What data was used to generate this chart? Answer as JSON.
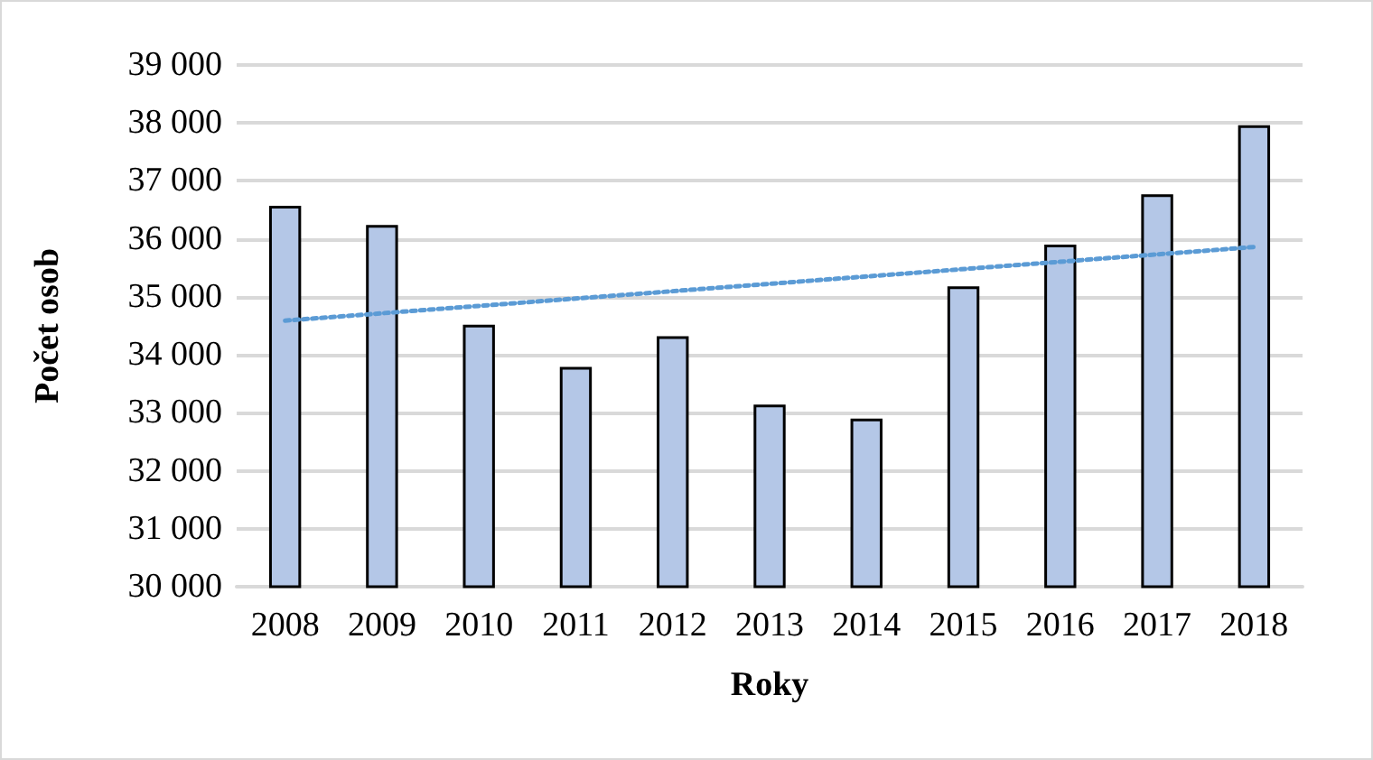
{
  "chart_data": {
    "type": "bar",
    "xlabel": "Roky",
    "ylabel": "Počet osob",
    "categories": [
      "2008",
      "2009",
      "2010",
      "2011",
      "2012",
      "2013",
      "2014",
      "2015",
      "2016",
      "2017",
      "2018"
    ],
    "series": [
      {
        "color": "#b4c7e7",
        "values": [
          36570,
          36240,
          34520,
          33790,
          34320,
          33140,
          32900,
          35180,
          35900,
          36770,
          37960
        ]
      },
      {
        "type": "line",
        "color": "#5b9bd5",
        "line_style": "dotted",
        "marker": "none",
        "values": [
          34590,
          null,
          null,
          null,
          null,
          null,
          null,
          null,
          null,
          null,
          35860
        ]
      }
    ],
    "ylim": [
      30000,
      39000
    ],
    "yticks": [
      {
        "value": 30000,
        "label": "30 000"
      },
      {
        "value": 31000,
        "label": "31 000"
      },
      {
        "value": 32000,
        "label": "32 000"
      },
      {
        "value": 33000,
        "label": "33 000"
      },
      {
        "value": 34000,
        "label": "34 000"
      },
      {
        "value": 35000,
        "label": "35 000"
      },
      {
        "value": 36000,
        "label": "36 000"
      },
      {
        "value": 37000,
        "label": "37 000"
      },
      {
        "value": 38000,
        "label": "38 000"
      },
      {
        "value": 39000,
        "label": "39 000"
      }
    ],
    "grid": "y"
  }
}
